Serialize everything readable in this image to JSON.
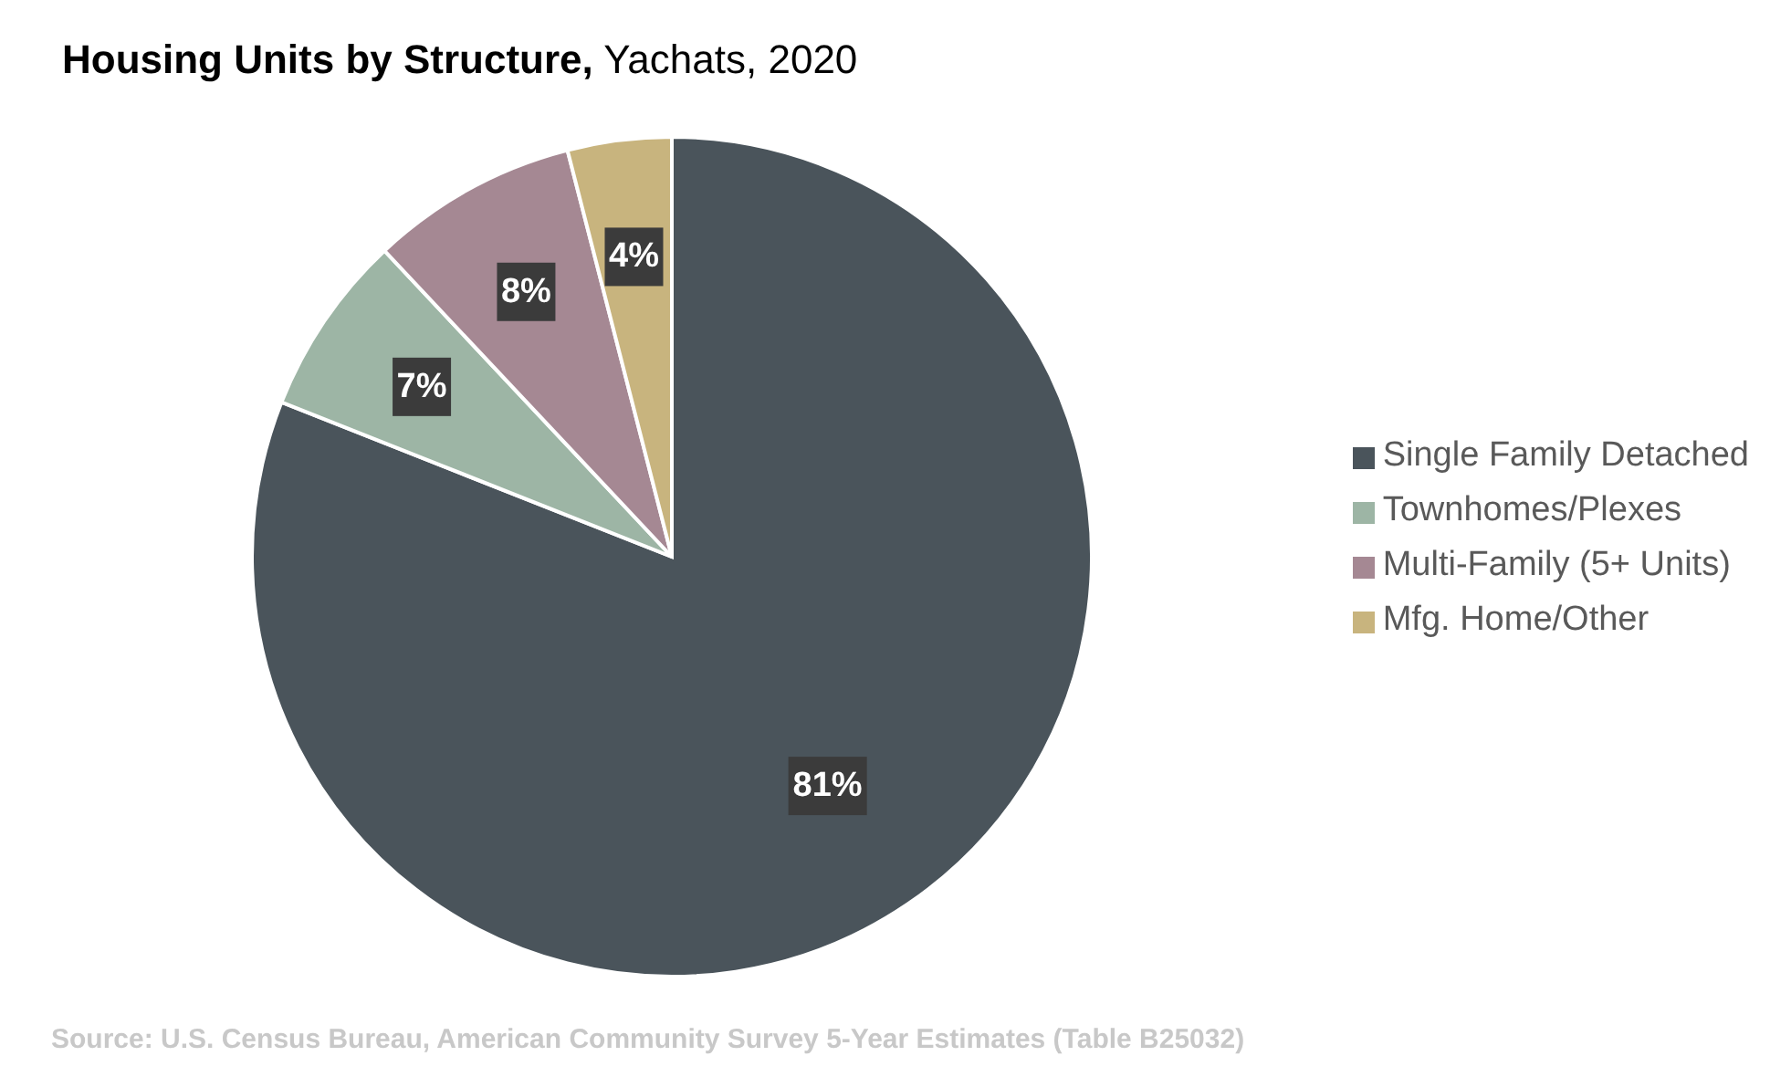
{
  "chart_data": {
    "type": "pie",
    "title": "Housing Units by Structure,",
    "subtitle": "Yachats, 2020",
    "categories": [
      "Single Family Detached",
      "Townhomes/Plexes",
      "Multi-Family (5+ Units)",
      "Mfg. Home/Other"
    ],
    "values": [
      81,
      7,
      8,
      4
    ],
    "colors": [
      "#4a545b",
      "#9db5a5",
      "#a58893",
      "#c8b47e"
    ],
    "value_labels": [
      "81%",
      "7%",
      "8%",
      "4%"
    ],
    "legend": "right",
    "annotations": [
      "Source: U.S. Census Bureau,  American Community Survey 5-Year Estimates (Table B25032)"
    ]
  }
}
